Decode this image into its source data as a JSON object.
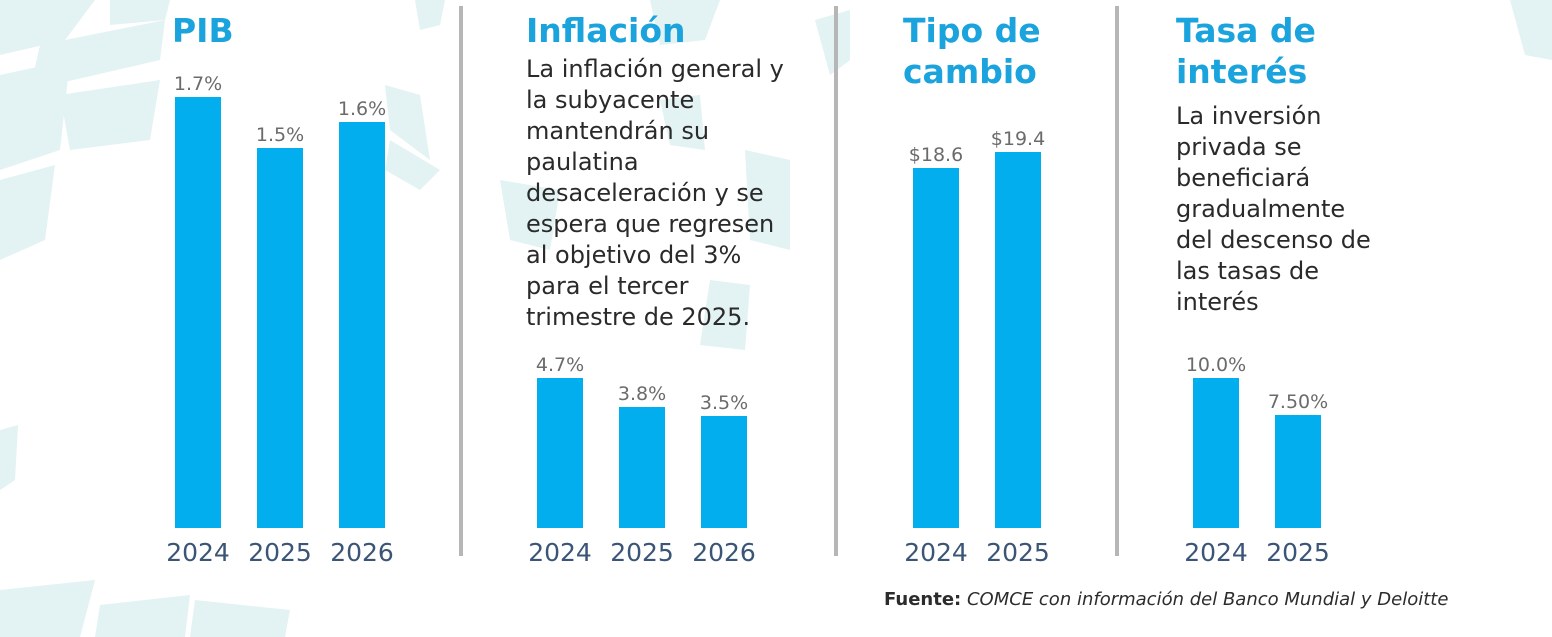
{
  "chart_data": [
    {
      "type": "bar",
      "title": "PIB",
      "categories": [
        "2024",
        "2025",
        "2026"
      ],
      "values": [
        1.7,
        1.5,
        1.6
      ],
      "value_labels": [
        "1.7%",
        "1.5%",
        "1.6%"
      ],
      "ylim": [
        0,
        1.7
      ],
      "xlabel": "",
      "ylabel": ""
    },
    {
      "type": "bar",
      "title": "Inflación",
      "description": "La inflación general y la subyacente mantendrán su paulatina desaceleración y se espera que regresen al objetivo del 3% para el tercer trimestre de 2025.",
      "categories": [
        "2024",
        "2025",
        "2026"
      ],
      "values": [
        4.7,
        3.8,
        3.5
      ],
      "value_labels": [
        "4.7%",
        "3.8%",
        "3.5%"
      ],
      "ylim": [
        0,
        4.7
      ],
      "xlabel": "",
      "ylabel": ""
    },
    {
      "type": "bar",
      "title": "Tipo de cambio",
      "categories": [
        "2024",
        "2025"
      ],
      "values": [
        18.6,
        19.4
      ],
      "value_labels": [
        "$18.6",
        "$19.4"
      ],
      "ylim": [
        0,
        19.4
      ],
      "xlabel": "",
      "ylabel": ""
    },
    {
      "type": "bar",
      "title": "Tasa de interés",
      "description": "La inversión privada se beneficiará gradualmente del descenso de las tasas de interés",
      "categories": [
        "2024",
        "2025"
      ],
      "values": [
        10.0,
        7.5
      ],
      "value_labels": [
        "10.0%",
        "7.50%"
      ],
      "ylim": [
        0,
        10.0
      ],
      "xlabel": "",
      "ylabel": ""
    }
  ],
  "source": {
    "label": "Fuente:",
    "text": "COMCE con información del Banco Mundial y Deloitte"
  },
  "colors": {
    "bar": "#02aeee",
    "title": "#1aa3dc",
    "year": "#3a5576",
    "value_label": "#6b6b6b",
    "decor": "#e3f2f2"
  }
}
